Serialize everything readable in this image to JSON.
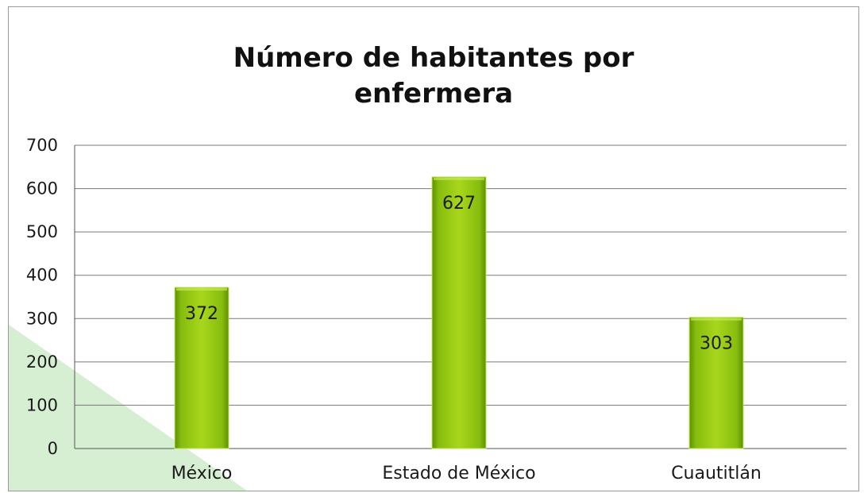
{
  "chart_data": {
    "type": "bar",
    "title_lines": [
      "Número de habitantes por",
      "enfermera"
    ],
    "categories": [
      "México",
      "Estado de México",
      "Cuautitlán"
    ],
    "series": [
      {
        "values": [
          372,
          627,
          303
        ]
      }
    ],
    "data_labels": [
      "372",
      "627",
      "303"
    ],
    "yticks": [
      "0",
      "100",
      "200",
      "300",
      "400",
      "500",
      "600",
      "700"
    ],
    "ylim": [
      0,
      700
    ],
    "ystep": 100,
    "grid": true,
    "legend": "none",
    "colors": {
      "bar_light": "#a8d61c",
      "bar_mid": "#86bd0e",
      "bar_dark": "#5f8f00",
      "bar_edge": "#c4ea5a",
      "gridline": "#7a7a7a",
      "axis": "#555555",
      "decor_triangle": "#d6efd2"
    }
  }
}
